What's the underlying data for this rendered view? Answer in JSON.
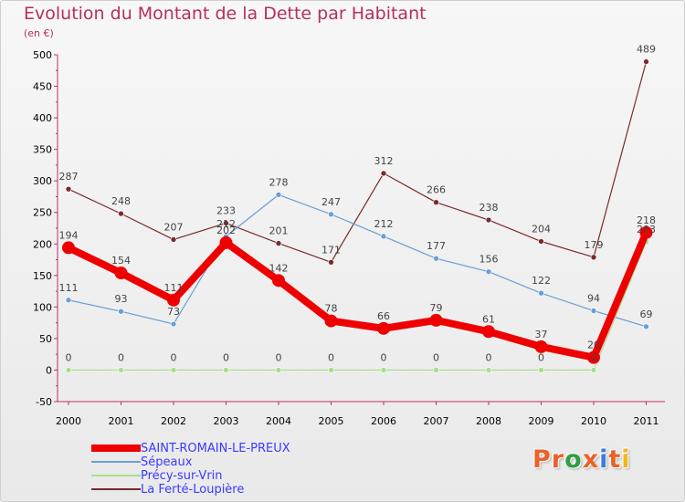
{
  "header": {
    "title": "Evolution du Montant de la Dette par Habitant",
    "unit": "(en €)"
  },
  "logo": {
    "text": "Proxiti",
    "colors": [
      "#e8622a",
      "#e8622a",
      "#2f9e44",
      "#e8622a",
      "#3b7dd8",
      "#e8622a",
      "#f2b51c"
    ]
  },
  "chart_data": {
    "type": "line",
    "x": [
      "2000",
      "2001",
      "2002",
      "2003",
      "2004",
      "2005",
      "2006",
      "2007",
      "2008",
      "2009",
      "2010",
      "2011"
    ],
    "yticks": [
      -50,
      0,
      50,
      100,
      150,
      200,
      250,
      300,
      350,
      400,
      450,
      500
    ],
    "ylim": [
      -50,
      500
    ],
    "grid": false,
    "legend_position": "bottom-left",
    "series": [
      {
        "name": "SAINT-ROMAIN-LE-PREUX",
        "color": "#ee0000",
        "values": [
          194,
          154,
          111,
          202,
          142,
          78,
          66,
          79,
          61,
          37,
          20,
          218
        ]
      },
      {
        "name": "Sépeaux",
        "color": "#6a9fd4",
        "values": [
          111,
          93,
          73,
          212,
          278,
          247,
          212,
          177,
          156,
          122,
          94,
          69
        ]
      },
      {
        "name": "Précy-sur-Vrin",
        "color": "#a6e08a",
        "values": [
          0,
          0,
          0,
          0,
          0,
          0,
          0,
          0,
          0,
          0,
          0,
          203
        ]
      },
      {
        "name": "La Ferté-Loupière",
        "color": "#7a2a2a",
        "values": [
          287,
          248,
          207,
          233,
          201,
          171,
          312,
          266,
          238,
          204,
          179,
          489
        ]
      }
    ]
  }
}
